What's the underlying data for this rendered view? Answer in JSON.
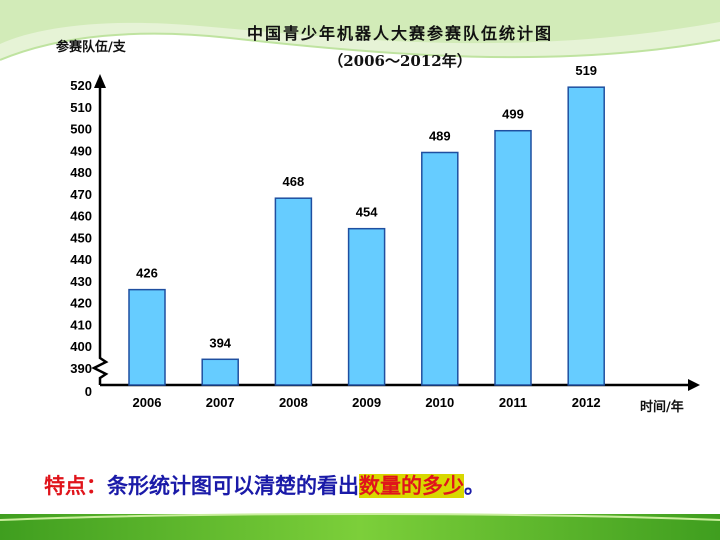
{
  "title": "中国青少年机器人大赛参赛队伍统计图",
  "subtitle": "（2006～2012年）",
  "note": {
    "lead": "特点：",
    "body": "条形统计图可以清楚的看出",
    "emphasis": "数量的多少",
    "end": "。"
  },
  "colors": {
    "bar_fill": "#66ccff",
    "bar_stroke": "#1f4fa0",
    "accent_green": "#5bb82a",
    "note_red": "#e0141b",
    "note_blue": "#1a1aa8",
    "highlight": "#d8d800"
  },
  "chart_data": {
    "type": "bar",
    "title": "中国青少年机器人大赛参赛队伍统计图",
    "subtitle": "（2006～2012年）",
    "ylabel": "参赛队伍/支",
    "xlabel": "时间/年",
    "categories": [
      "2006",
      "2007",
      "2008",
      "2009",
      "2010",
      "2011",
      "2012"
    ],
    "values": [
      426,
      394,
      468,
      454,
      489,
      499,
      519
    ],
    "data_labels": [
      "426",
      "394",
      "468",
      "454",
      "489",
      "499",
      "519"
    ],
    "y_ticks": [
      "0",
      "390",
      "400",
      "410",
      "420",
      "430",
      "440",
      "450",
      "460",
      "470",
      "480",
      "490",
      "500",
      "510",
      "520"
    ],
    "ylim": [
      380,
      520
    ],
    "axis_break": true,
    "grid": false,
    "legend": "none"
  }
}
